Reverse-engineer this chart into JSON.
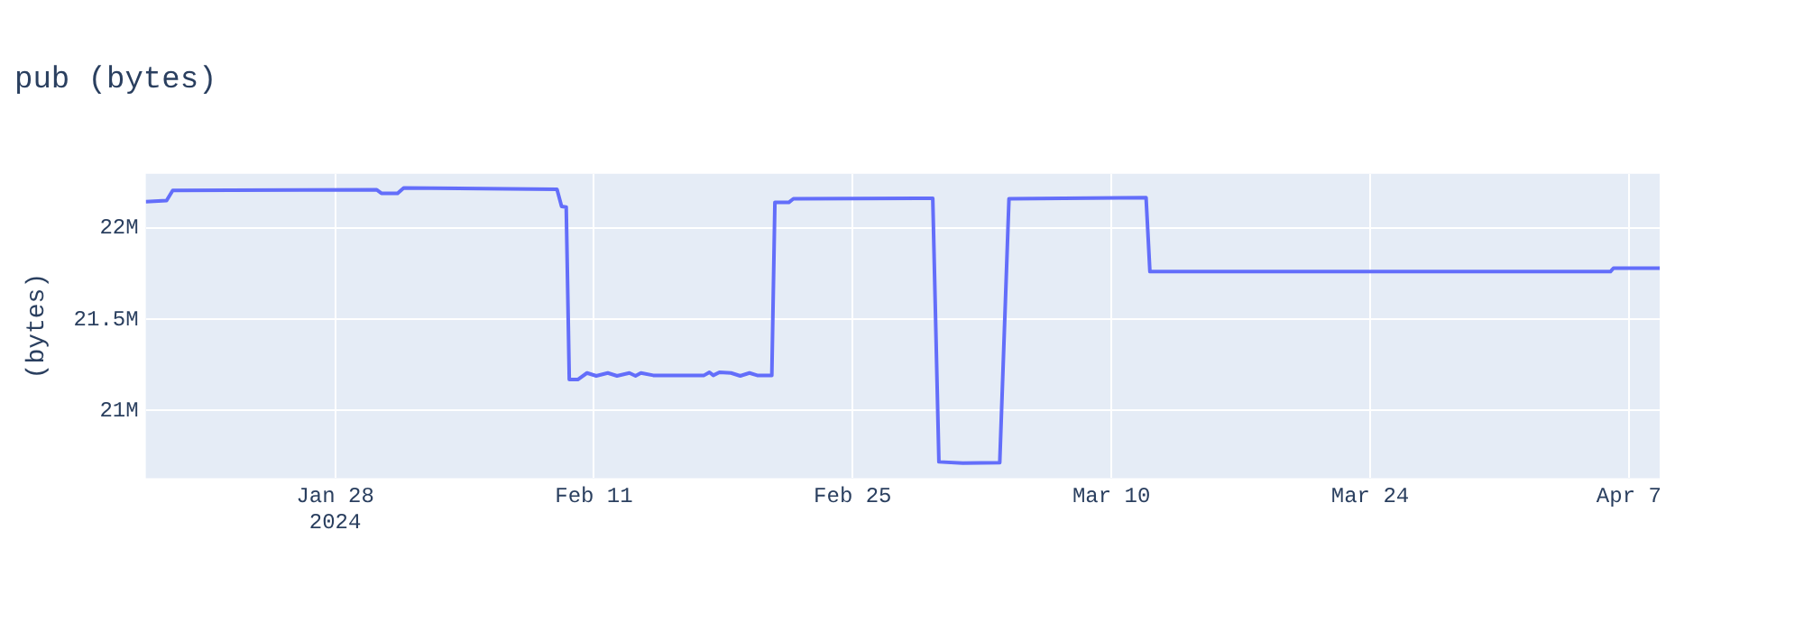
{
  "chart_data": {
    "type": "line",
    "title": "pub (bytes)",
    "ylabel": "(bytes)",
    "x": [
      "2024-01-17T18:00",
      "2024-01-18T21:00",
      "2024-01-19T05:00",
      "2024-01-30T06:00",
      "2024-01-30T12:00",
      "2024-01-31T09:00",
      "2024-01-31T17:00",
      "2024-02-09T00:00",
      "2024-02-09T06:00",
      "2024-02-09T12:00",
      "2024-02-09T16:00",
      "2024-02-10T03:00",
      "2024-02-10T15:00",
      "2024-02-11T03:00",
      "2024-02-11T18:00",
      "2024-02-12T06:00",
      "2024-02-12T22:00",
      "2024-02-13T06:00",
      "2024-02-13T13:00",
      "2024-02-14T05:00",
      "2024-02-16T23:00",
      "2024-02-17T06:00",
      "2024-02-17T11:00",
      "2024-02-17T19:00",
      "2024-02-18T10:00",
      "2024-02-18T22:00",
      "2024-02-19T10:00",
      "2024-02-19T20:00",
      "2024-02-20T15:00",
      "2024-02-20T19:00",
      "2024-02-21T13:00",
      "2024-02-21T19:00",
      "2024-02-29T08:00",
      "2024-02-29T16:00",
      "2024-03-01T23:00",
      "2024-03-03T23:00",
      "2024-03-04T11:00",
      "2024-03-11T21:00",
      "2024-03-12T02:00",
      "2024-04-06T00:00",
      "2024-04-06T04:00",
      "2024-04-08T16:00"
    ],
    "series": [
      {
        "color": "#636efa",
        "values": [
          22144000,
          22150000,
          22206000,
          22209000,
          22190000,
          22190000,
          22220000,
          22212000,
          22118000,
          22115000,
          21170000,
          21170000,
          21206000,
          21190000,
          21206000,
          21190000,
          21206000,
          21190000,
          21206000,
          21193000,
          21193000,
          21210000,
          21193000,
          21210000,
          21206000,
          21190000,
          21206000,
          21193000,
          21193000,
          22140000,
          22140000,
          22160000,
          22163000,
          20719000,
          20712000,
          20715000,
          22160000,
          22167000,
          21761000,
          21761000,
          21780000,
          21780000
        ]
      }
    ],
    "xlim": [
      "2024-01-17T18:00",
      "2024-04-08T16:00"
    ],
    "xticks": [
      {
        "value": "2024-01-28",
        "label": "Jan 28\n2024"
      },
      {
        "value": "2024-02-11",
        "label": "Feb 11"
      },
      {
        "value": "2024-02-25",
        "label": "Feb 25"
      },
      {
        "value": "2024-03-10",
        "label": "Mar 10"
      },
      {
        "value": "2024-03-24",
        "label": "Mar 24"
      },
      {
        "value": "2024-04-07",
        "label": "Apr 7"
      }
    ],
    "ylim": [
      20630000,
      22297000
    ],
    "yticks": [
      {
        "value": 21000000,
        "label": "21M"
      },
      {
        "value": 21500000,
        "label": "21.5M"
      },
      {
        "value": 22000000,
        "label": "22M"
      }
    ],
    "grid": true,
    "marker": "none",
    "line_style": "solid"
  }
}
